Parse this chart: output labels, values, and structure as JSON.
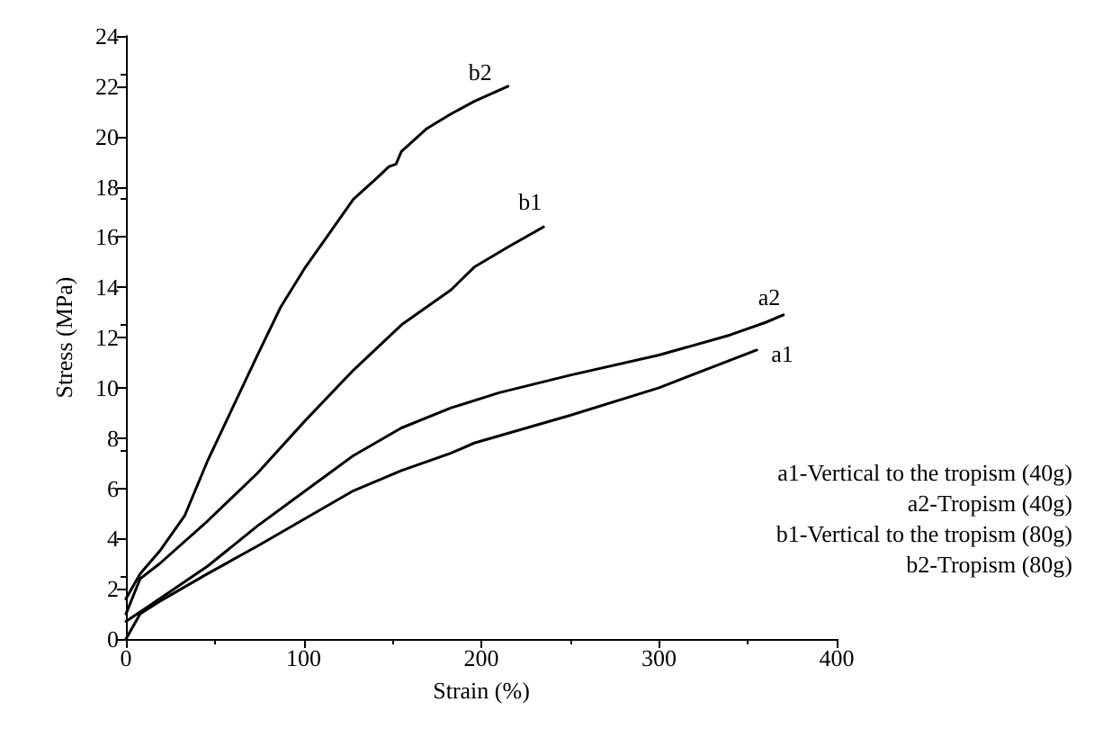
{
  "chart_data": {
    "type": "line",
    "xlabel": "Strain (%)",
    "ylabel": "Stress (MPa)",
    "xlim": [
      0,
      400
    ],
    "xticks": [
      0,
      100,
      200,
      300,
      400
    ],
    "ylim": [
      0,
      24
    ],
    "yticks": [
      0,
      2,
      4,
      6,
      8,
      10,
      12,
      14,
      16,
      18,
      20,
      22,
      24
    ],
    "grid": false,
    "legend": false,
    "marker": "none",
    "line_style": "solid",
    "series": [
      {
        "name": "b2",
        "color": "#000000",
        "x": [
          0,
          8,
          19,
          33,
          46,
          60,
          74,
          87,
          101,
          114,
          128,
          142,
          148,
          152,
          155,
          169,
          183,
          196,
          215
        ],
        "values": [
          1.6,
          2.6,
          3.5,
          4.9,
          7.1,
          9.2,
          11.3,
          13.2,
          14.8,
          16.1,
          17.5,
          18.4,
          18.8,
          18.9,
          19.4,
          20.3,
          20.9,
          21.4,
          22.0
        ]
      },
      {
        "name": "b1",
        "color": "#000000",
        "x": [
          0,
          8,
          19,
          46,
          74,
          101,
          128,
          155,
          183,
          196,
          215,
          235
        ],
        "values": [
          1.0,
          2.4,
          3.0,
          4.7,
          6.6,
          8.7,
          10.7,
          12.5,
          13.9,
          14.8,
          15.6,
          16.4
        ]
      },
      {
        "name": "a2",
        "color": "#000000",
        "x": [
          0,
          19,
          46,
          74,
          101,
          128,
          155,
          183,
          210,
          250,
          300,
          340,
          360,
          370
        ],
        "values": [
          0.7,
          1.6,
          2.9,
          4.5,
          5.9,
          7.3,
          8.4,
          9.2,
          9.8,
          10.5,
          11.3,
          12.1,
          12.6,
          12.9
        ]
      },
      {
        "name": "a1",
        "color": "#000000",
        "x": [
          0,
          8,
          19,
          46,
          74,
          101,
          128,
          155,
          183,
          196,
          250,
          300,
          355
        ],
        "values": [
          0,
          1.0,
          1.5,
          2.6,
          3.7,
          4.8,
          5.9,
          6.7,
          7.4,
          7.8,
          8.9,
          10.0,
          11.5
        ]
      }
    ],
    "annotations": [
      "a1-Vertical to the tropism (40g)",
      "a2-Tropism (40g)",
      "b1-Vertical to the tropism (80g)",
      "b2-Tropism (80g)"
    ]
  }
}
